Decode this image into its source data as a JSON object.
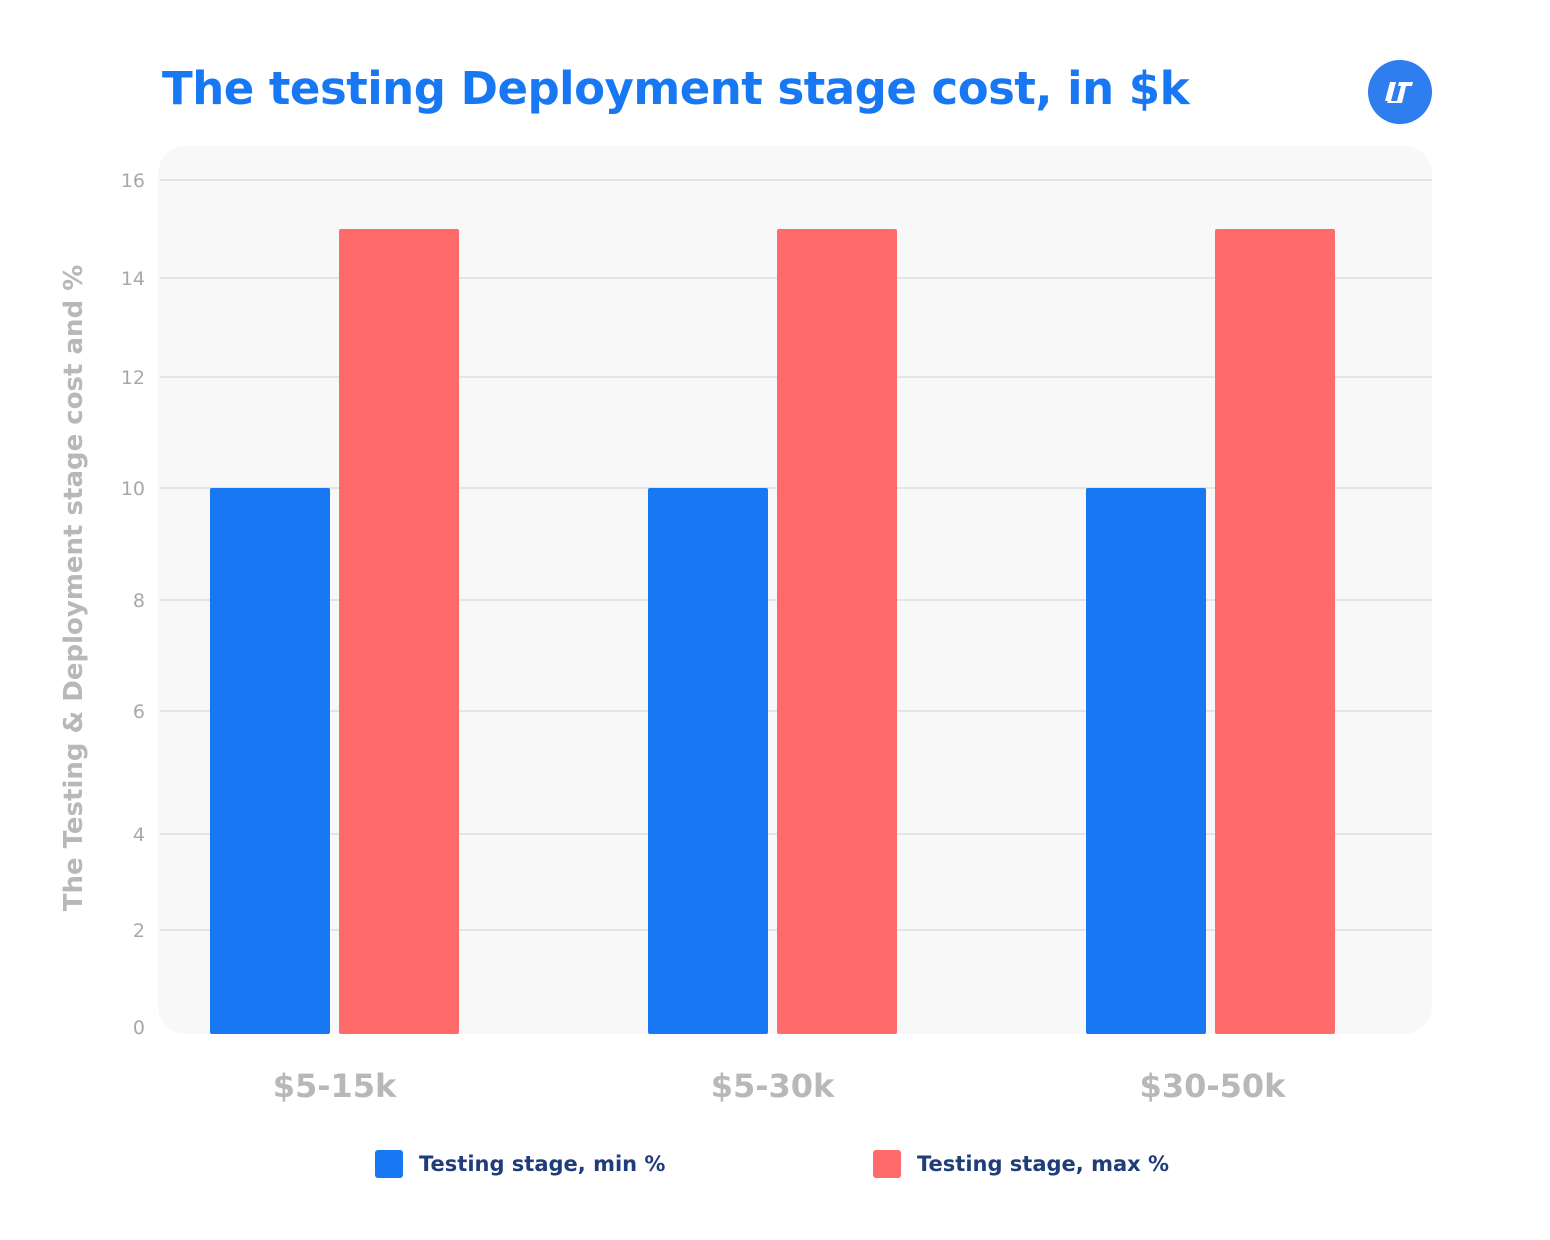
{
  "chart_data": {
    "type": "bar",
    "title": "The testing Deployment stage cost, in $k",
    "ylabel": "The Testing & Deployment stage cost and %",
    "xlabel": "",
    "categories": [
      "$5-15k",
      "$5-30k",
      "$30-50k"
    ],
    "series": [
      {
        "name": "Testing stage, min %",
        "values": [
          10,
          10,
          10
        ],
        "color": "#1877f2"
      },
      {
        "name": "Testing stage, max %",
        "values": [
          15,
          15,
          15
        ],
        "color": "#ff6b6b"
      }
    ],
    "yticks": [
      0,
      2,
      4,
      6,
      8,
      10,
      12,
      14,
      16
    ],
    "ylim": [
      0,
      16
    ],
    "grid": true,
    "legend_position": "bottom"
  },
  "logo": {
    "icon": "brand-logo-icon",
    "color": "#2f7ef0"
  }
}
